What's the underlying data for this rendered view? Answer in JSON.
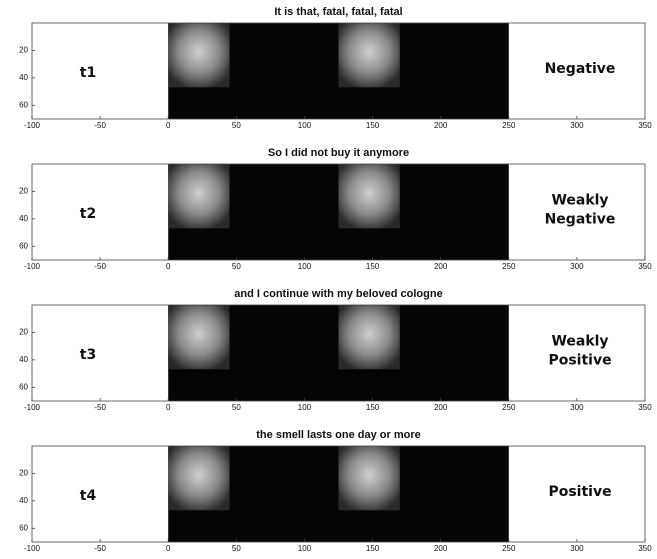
{
  "chart_data": [
    {
      "type": "image",
      "title": "It is that, fatal, fatal, fatal",
      "label": "t1",
      "sentiment": [
        "Negative"
      ],
      "xlim": [
        -100,
        350
      ],
      "ylim": [
        0,
        70
      ],
      "y_reversed": true,
      "xticks": [
        -100,
        -50,
        0,
        50,
        100,
        150,
        200,
        250,
        300,
        350
      ],
      "yticks": [
        20,
        40,
        60
      ]
    },
    {
      "type": "image",
      "title": "So I did not buy it anymore",
      "label": "t2",
      "sentiment": [
        "Weakly",
        "Negative"
      ],
      "xlim": [
        -100,
        350
      ],
      "ylim": [
        0,
        70
      ],
      "y_reversed": true,
      "xticks": [
        -100,
        -50,
        0,
        50,
        100,
        150,
        200,
        250,
        300,
        350
      ],
      "yticks": [
        20,
        40,
        60
      ]
    },
    {
      "type": "image",
      "title": "and I continue with my beloved cologne",
      "label": "t3",
      "sentiment": [
        "Weakly",
        "Positive"
      ],
      "xlim": [
        -100,
        350
      ],
      "ylim": [
        0,
        70
      ],
      "y_reversed": true,
      "xticks": [
        -100,
        -50,
        0,
        50,
        100,
        150,
        200,
        250,
        300,
        350
      ],
      "yticks": [
        20,
        40,
        60
      ]
    },
    {
      "type": "image",
      "title": "the smell lasts one day or more",
      "label": "t4",
      "sentiment": [
        "Positive"
      ],
      "xlim": [
        -100,
        350
      ],
      "ylim": [
        0,
        70
      ],
      "y_reversed": true,
      "xticks": [
        -100,
        -50,
        0,
        50,
        100,
        150,
        200,
        250,
        300,
        350
      ],
      "yticks": [
        20,
        40,
        60
      ]
    }
  ]
}
